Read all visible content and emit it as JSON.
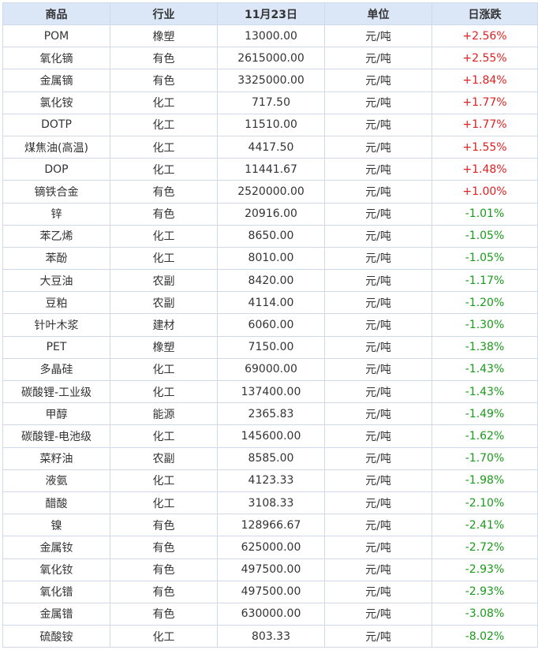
{
  "table": {
    "headers": [
      "商品",
      "行业",
      "11月23日",
      "单位",
      "日涨跌"
    ],
    "colors": {
      "up": "#e02020",
      "down": "#1a9a1a",
      "header_bg": "#dbe6f7",
      "border": "#cfd9ea"
    },
    "rows": [
      [
        "POM",
        "橡塑",
        "13000.00",
        "元/吨",
        "+2.56%"
      ],
      [
        "氧化镝",
        "有色",
        "2615000.00",
        "元/吨",
        "+2.55%"
      ],
      [
        "金属镝",
        "有色",
        "3325000.00",
        "元/吨",
        "+1.84%"
      ],
      [
        "氯化铵",
        "化工",
        "717.50",
        "元/吨",
        "+1.77%"
      ],
      [
        "DOTP",
        "化工",
        "11510.00",
        "元/吨",
        "+1.77%"
      ],
      [
        "煤焦油(高温)",
        "化工",
        "4417.50",
        "元/吨",
        "+1.55%"
      ],
      [
        "DOP",
        "化工",
        "11441.67",
        "元/吨",
        "+1.48%"
      ],
      [
        "镝铁合金",
        "有色",
        "2520000.00",
        "元/吨",
        "+1.00%"
      ],
      [
        "锌",
        "有色",
        "20916.00",
        "元/吨",
        "-1.01%"
      ],
      [
        "苯乙烯",
        "化工",
        "8650.00",
        "元/吨",
        "-1.05%"
      ],
      [
        "苯酚",
        "化工",
        "8010.00",
        "元/吨",
        "-1.05%"
      ],
      [
        "大豆油",
        "农副",
        "8420.00",
        "元/吨",
        "-1.17%"
      ],
      [
        "豆粕",
        "农副",
        "4114.00",
        "元/吨",
        "-1.20%"
      ],
      [
        "针叶木浆",
        "建材",
        "6060.00",
        "元/吨",
        "-1.30%"
      ],
      [
        "PET",
        "橡塑",
        "7150.00",
        "元/吨",
        "-1.38%"
      ],
      [
        "多晶硅",
        "化工",
        "69000.00",
        "元/吨",
        "-1.43%"
      ],
      [
        "碳酸锂-工业级",
        "化工",
        "137400.00",
        "元/吨",
        "-1.43%"
      ],
      [
        "甲醇",
        "能源",
        "2365.83",
        "元/吨",
        "-1.49%"
      ],
      [
        "碳酸锂-电池级",
        "化工",
        "145600.00",
        "元/吨",
        "-1.62%"
      ],
      [
        "菜籽油",
        "农副",
        "8585.00",
        "元/吨",
        "-1.70%"
      ],
      [
        "液氨",
        "化工",
        "4123.33",
        "元/吨",
        "-1.98%"
      ],
      [
        "醋酸",
        "化工",
        "3108.33",
        "元/吨",
        "-2.10%"
      ],
      [
        "镍",
        "有色",
        "128966.67",
        "元/吨",
        "-2.41%"
      ],
      [
        "金属钕",
        "有色",
        "625000.00",
        "元/吨",
        "-2.72%"
      ],
      [
        "氧化钕",
        "有色",
        "497500.00",
        "元/吨",
        "-2.93%"
      ],
      [
        "氧化镨",
        "有色",
        "497500.00",
        "元/吨",
        "-2.93%"
      ],
      [
        "金属镨",
        "有色",
        "630000.00",
        "元/吨",
        "-3.08%"
      ],
      [
        "硫酸铵",
        "化工",
        "803.33",
        "元/吨",
        "-8.02%"
      ]
    ]
  }
}
